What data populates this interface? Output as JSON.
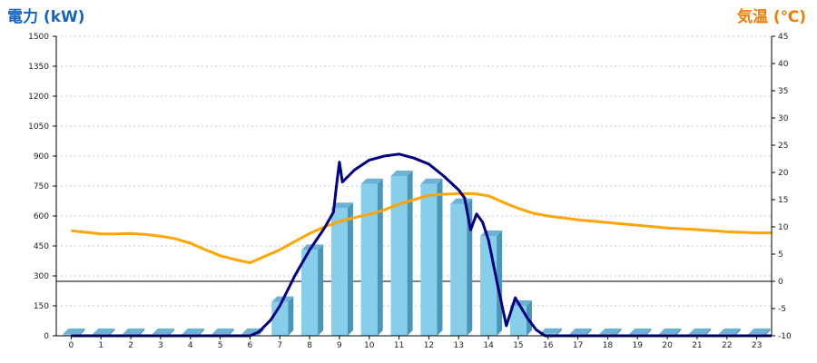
{
  "chart_data": {
    "type": "bar+line",
    "left_axis": {
      "title": "電力 (kW)",
      "ticks": [
        0,
        150,
        300,
        450,
        600,
        750,
        900,
        1050,
        1200,
        1350,
        1500
      ],
      "range": [
        0,
        1500
      ]
    },
    "right_axis": {
      "title": "気温 (℃)",
      "ticks": [
        -10,
        -5,
        0,
        5,
        10,
        15,
        20,
        25,
        30,
        35,
        40,
        45
      ],
      "range": [
        -10,
        45
      ]
    },
    "x_categories": [
      "0",
      "1",
      "2",
      "3",
      "4",
      "5",
      "6",
      "7",
      "8",
      "9",
      "10",
      "11",
      "12",
      "13",
      "14",
      "15",
      "16",
      "17",
      "18",
      "19",
      "20",
      "21",
      "22",
      "23"
    ],
    "bars": {
      "name": "",
      "color": "#87ceeb",
      "values": [
        0,
        0,
        0,
        0,
        0,
        0,
        0,
        170,
        430,
        640,
        760,
        800,
        760,
        660,
        500,
        150,
        10,
        0,
        0,
        0,
        0,
        0,
        0,
        0
      ]
    },
    "power_line": {
      "name": "",
      "color": "#000080",
      "points": [
        [
          0,
          0
        ],
        [
          6,
          0
        ],
        [
          6.3,
          20
        ],
        [
          6.7,
          80
        ],
        [
          7,
          150
        ],
        [
          7.5,
          300
        ],
        [
          8,
          430
        ],
        [
          8.5,
          540
        ],
        [
          8.8,
          620
        ],
        [
          8.9,
          750
        ],
        [
          9,
          870
        ],
        [
          9.1,
          770
        ],
        [
          9.3,
          800
        ],
        [
          9.5,
          830
        ],
        [
          10,
          880
        ],
        [
          10.5,
          900
        ],
        [
          11,
          910
        ],
        [
          11.5,
          890
        ],
        [
          12,
          860
        ],
        [
          12.5,
          800
        ],
        [
          13,
          730
        ],
        [
          13.2,
          690
        ],
        [
          13.4,
          530
        ],
        [
          13.6,
          610
        ],
        [
          13.8,
          570
        ],
        [
          14,
          480
        ],
        [
          14.3,
          260
        ],
        [
          14.6,
          50
        ],
        [
          14.9,
          190
        ],
        [
          15.3,
          90
        ],
        [
          15.6,
          30
        ],
        [
          15.9,
          0
        ],
        [
          23.5,
          0
        ]
      ]
    },
    "temperature_line": {
      "name": "",
      "color": "#ffa500",
      "points": [
        [
          0,
          9.3
        ],
        [
          0.5,
          9
        ],
        [
          1,
          8.7
        ],
        [
          1.5,
          8.7
        ],
        [
          2,
          8.8
        ],
        [
          2.5,
          8.6
        ],
        [
          3,
          8.3
        ],
        [
          3.5,
          7.8
        ],
        [
          4,
          7
        ],
        [
          4.5,
          5.8
        ],
        [
          5,
          4.7
        ],
        [
          5.5,
          4
        ],
        [
          6,
          3.4
        ],
        [
          6.5,
          4.6
        ],
        [
          7,
          5.8
        ],
        [
          7.5,
          7.3
        ],
        [
          8,
          8.8
        ],
        [
          8.5,
          10
        ],
        [
          9,
          11
        ],
        [
          9.5,
          11.7
        ],
        [
          10,
          12.3
        ],
        [
          10.5,
          13.1
        ],
        [
          11,
          14.2
        ],
        [
          11.5,
          15
        ],
        [
          12,
          15.8
        ],
        [
          12.5,
          16
        ],
        [
          13,
          16.1
        ],
        [
          13.5,
          16.1
        ],
        [
          14,
          15.7
        ],
        [
          14.5,
          14.5
        ],
        [
          15,
          13.4
        ],
        [
          15.5,
          12.5
        ],
        [
          16,
          12
        ],
        [
          17,
          11.3
        ],
        [
          18,
          10.8
        ],
        [
          19,
          10.3
        ],
        [
          20,
          9.8
        ],
        [
          21,
          9.5
        ],
        [
          22,
          9.1
        ],
        [
          23,
          8.9
        ],
        [
          23.5,
          8.9
        ]
      ]
    },
    "grid": true,
    "colors": {
      "left_title": "#1565c0",
      "right_title": "#f07c00",
      "bar_side": "#4a95b8",
      "bar_top": "#6bb3d6",
      "grid": "#c8c8c8"
    }
  }
}
